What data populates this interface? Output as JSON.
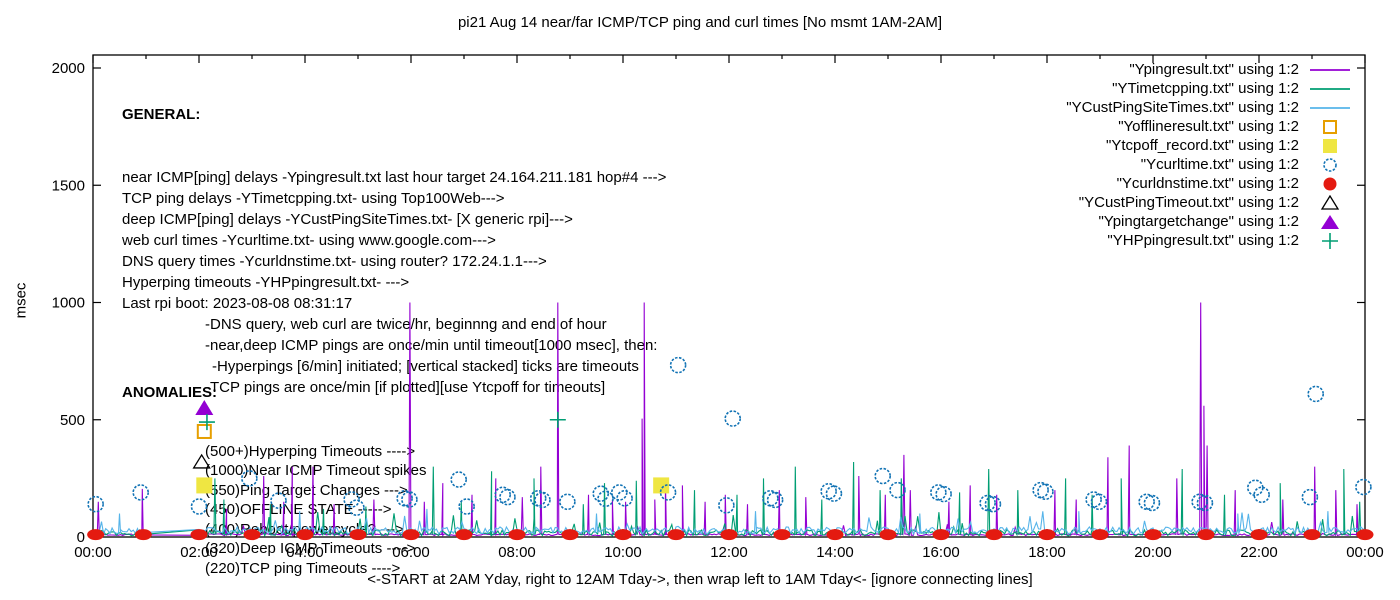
{
  "title": "pi21 Aug 14  near/far ICMP/TCP ping and curl times [No msmt 1AM-2AM]",
  "y_axis": {
    "label": "msec",
    "tick_values": [
      0,
      500,
      1000,
      1500,
      2000
    ]
  },
  "x_axis": {
    "tick_labels": [
      "00:00",
      "02:00",
      "04:00",
      "06:00",
      "08:00",
      "10:00",
      "12:00",
      "14:00",
      "16:00",
      "18:00",
      "20:00",
      "22:00",
      "00:00"
    ],
    "label": "<-START at 2AM Yday, right to 12AM Tday->, then wrap left to 1AM Tday<- [ignore connecting lines]"
  },
  "annotations": {
    "general": {
      "heading": "GENERAL:",
      "lines": [
        {
          "text": "near ICMP[ping] delays -Ypingresult.txt last hour target 24.164.211.181 hop#4 --->",
          "indent": 0
        },
        {
          "text": "TCP ping delays -YTimetcpping.txt- using Top100Web--->",
          "indent": 0
        },
        {
          "text": "deep ICMP[ping] delays -YCustPingSiteTimes.txt- [X generic rpi]--->",
          "indent": 0
        },
        {
          "text": "web curl times -Ycurltime.txt- using www.google.com--->",
          "indent": 0
        },
        {
          "text": "DNS query times -Ycurldnstime.txt- using router? 172.24.1.1--->",
          "indent": 0
        },
        {
          "text": "Hyperping timeouts -YHPpingresult.txt- --->",
          "indent": 0
        },
        {
          "text": "Last rpi boot: 2023-08-08 08:31:17",
          "indent": 0
        },
        {
          "text": "-DNS query, web curl are twice/hr, beginnng and end of hour",
          "indent": 1
        },
        {
          "text": "-near,deep ICMP pings are once/min until timeout[1000 msec], then:",
          "indent": 1
        },
        {
          "text": "-Hyperpings [6/min] initiated; [vertical stacked] ticks are timeouts",
          "indent": 2
        },
        {
          "text": "-TCP pings are once/min [if plotted][use Ytcpoff for timeouts]",
          "indent": 1
        }
      ]
    },
    "anomalies": {
      "heading": "ANOMALIES:",
      "lines": [
        "(500+)Hyperping Timeouts ---->",
        "(1000)Near ICMP Timeout spikes",
        "(550)Ping Target Changes --->",
        "(450)OFFLINE STATE ----->",
        "(400)Reboot/powercycle? --->",
        "(320)Deep ICMP Timeouts ---->",
        "(220)TCP ping Timeouts ---->"
      ]
    }
  },
  "chart_data": {
    "type": "line",
    "xlim": [
      0,
      24
    ],
    "ylim": [
      0,
      2000
    ],
    "x_unit": "hour of day",
    "y_unit": "msec",
    "no_measurement_gap_hours": [
      1,
      2
    ],
    "series": [
      {
        "name": "Ypingresult.txt",
        "legend_label": "\"Ypingresult.txt\" using 1:2",
        "kind": "line",
        "color": "#9400d3",
        "baseline": {
          "base": 6,
          "jitter": 8,
          "spike_prob": 0.03,
          "spike_max": 55,
          "seed": 7
        },
        "spikes": [
          [
            0.1,
            150
          ],
          [
            0.93,
            205
          ],
          [
            2.52,
            120
          ],
          [
            3.22,
            260
          ],
          [
            3.6,
            150
          ],
          [
            3.76,
            300
          ],
          [
            4.15,
            300
          ],
          [
            4.55,
            140
          ],
          [
            5.3,
            160
          ],
          [
            5.98,
            1000
          ],
          [
            6.25,
            150
          ],
          [
            6.6,
            230
          ],
          [
            7.15,
            180
          ],
          [
            7.6,
            250
          ],
          [
            8.1,
            170
          ],
          [
            8.45,
            300
          ],
          [
            8.77,
            1000
          ],
          [
            9.35,
            180
          ],
          [
            9.8,
            160
          ],
          [
            10.05,
            150
          ],
          [
            10.36,
            505
          ],
          [
            10.4,
            1000
          ],
          [
            10.6,
            160
          ],
          [
            10.8,
            250
          ],
          [
            11.12,
            220
          ],
          [
            11.55,
            150
          ],
          [
            11.93,
            180
          ],
          [
            12.35,
            140
          ],
          [
            12.95,
            200
          ],
          [
            13.45,
            170
          ],
          [
            14.45,
            260
          ],
          [
            14.95,
            180
          ],
          [
            15.3,
            350
          ],
          [
            15.42,
            200
          ],
          [
            16.15,
            150
          ],
          [
            16.55,
            220
          ],
          [
            17.05,
            180
          ],
          [
            18.15,
            200
          ],
          [
            18.55,
            160
          ],
          [
            19.15,
            340
          ],
          [
            19.55,
            390
          ],
          [
            20.45,
            250
          ],
          [
            20.9,
            1000
          ],
          [
            20.96,
            560
          ],
          [
            21.02,
            390
          ],
          [
            21.55,
            200
          ],
          [
            22.45,
            160
          ],
          [
            23.05,
            300
          ],
          [
            23.45,
            200
          ],
          [
            23.85,
            140
          ]
        ]
      },
      {
        "name": "YTimetcpping.txt",
        "legend_label": "\"YTimetcpping.txt\" using 1:2",
        "kind": "line",
        "color": "#009e73",
        "baseline": {
          "base": 5,
          "jitter": 26,
          "spike_prob": 0.06,
          "spike_max": 95,
          "seed": 13
        },
        "spikes": [
          [
            2.3,
            250
          ],
          [
            2.47,
            160
          ],
          [
            3.35,
            140
          ],
          [
            4.35,
            120
          ],
          [
            5.15,
            130
          ],
          [
            6.42,
            300
          ],
          [
            6.95,
            150
          ],
          [
            7.52,
            280
          ],
          [
            8.32,
            250
          ],
          [
            9.25,
            140
          ],
          [
            9.65,
            230
          ],
          [
            10.25,
            240
          ],
          [
            11.35,
            200
          ],
          [
            12.15,
            180
          ],
          [
            12.65,
            250
          ],
          [
            13.25,
            300
          ],
          [
            13.75,
            160
          ],
          [
            14.35,
            320
          ],
          [
            14.85,
            200
          ],
          [
            15.25,
            250
          ],
          [
            16.35,
            190
          ],
          [
            16.9,
            290
          ],
          [
            17.45,
            200
          ],
          [
            18.35,
            250
          ],
          [
            18.85,
            180
          ],
          [
            19.4,
            250
          ],
          [
            20.55,
            290
          ],
          [
            21.35,
            180
          ],
          [
            22.4,
            230
          ],
          [
            23.6,
            290
          ],
          [
            23.9,
            150
          ]
        ]
      },
      {
        "name": "YCustPingSiteTimes.txt",
        "legend_label": "\"YCustPingSiteTimes.txt\" using 1:2",
        "kind": "line",
        "color": "#56b4e9",
        "baseline": {
          "base": 13,
          "jitter": 30,
          "spike_prob": 0.05,
          "spike_max": 70,
          "seed": 29
        },
        "spikes": [
          [
            0.5,
            100
          ],
          [
            3.9,
            110
          ],
          [
            6.3,
            120
          ],
          [
            9.5,
            100
          ],
          [
            12.5,
            110
          ],
          [
            15.6,
            100
          ],
          [
            18.6,
            110
          ],
          [
            21.6,
            100
          ],
          [
            23.3,
            110
          ]
        ]
      },
      {
        "name": "Yofflineresult.txt",
        "legend_label": "\"Yofflineresult.txt\" using 1:2",
        "kind": "square-open",
        "color": "#e69f00",
        "points": [
          [
            2.1,
            450
          ]
        ]
      },
      {
        "name": "Ytcpoff_record.txt",
        "legend_label": "\"Ytcpoff_record.txt\" using 1:2",
        "kind": "square-filled",
        "color": "#efe642",
        "points": [
          [
            2.1,
            220
          ],
          [
            10.72,
            220
          ]
        ]
      },
      {
        "name": "Ycurltime.txt",
        "legend_label": "\"Ycurltime.txt\" using 1:2",
        "kind": "circle-open",
        "color": "#1072b4",
        "points": [
          [
            0.05,
            140
          ],
          [
            0.9,
            190
          ],
          [
            2.0,
            130
          ],
          [
            2.95,
            250
          ],
          [
            3.5,
            155
          ],
          [
            4.88,
            160
          ],
          [
            4.97,
            125
          ],
          [
            5.88,
            165
          ],
          [
            5.97,
            160
          ],
          [
            6.9,
            245
          ],
          [
            7.05,
            130
          ],
          [
            7.73,
            180
          ],
          [
            7.82,
            170
          ],
          [
            8.4,
            165
          ],
          [
            8.48,
            158
          ],
          [
            8.95,
            150
          ],
          [
            9.58,
            185
          ],
          [
            9.67,
            163
          ],
          [
            9.93,
            190
          ],
          [
            10.03,
            165
          ],
          [
            10.85,
            190
          ],
          [
            11.04,
            733
          ],
          [
            11.95,
            135
          ],
          [
            12.07,
            505
          ],
          [
            12.78,
            165
          ],
          [
            12.87,
            158
          ],
          [
            13.88,
            195
          ],
          [
            13.98,
            185
          ],
          [
            14.9,
            260
          ],
          [
            15.18,
            200
          ],
          [
            15.95,
            190
          ],
          [
            16.05,
            183
          ],
          [
            16.88,
            145
          ],
          [
            16.98,
            140
          ],
          [
            17.88,
            200
          ],
          [
            17.97,
            193
          ],
          [
            18.88,
            160
          ],
          [
            18.98,
            150
          ],
          [
            19.88,
            150
          ],
          [
            19.98,
            145
          ],
          [
            20.88,
            150
          ],
          [
            20.98,
            145
          ],
          [
            21.93,
            210
          ],
          [
            22.05,
            180
          ],
          [
            22.96,
            170
          ],
          [
            23.07,
            610
          ],
          [
            23.97,
            213
          ]
        ]
      },
      {
        "name": "Ycurldnstime.txt",
        "legend_label": "\"Ycurldnstime.txt\" using 1:2",
        "kind": "circle-filled",
        "color": "#e41a10",
        "points": [
          [
            0.05,
            10
          ],
          [
            0.95,
            10
          ],
          [
            2,
            10
          ],
          [
            3,
            10
          ],
          [
            4,
            10
          ],
          [
            5,
            10
          ],
          [
            6,
            10
          ],
          [
            7,
            10
          ],
          [
            8,
            10
          ],
          [
            9,
            10
          ],
          [
            10,
            10
          ],
          [
            11,
            10
          ],
          [
            12,
            10
          ],
          [
            13,
            10
          ],
          [
            14,
            10
          ],
          [
            15,
            10
          ],
          [
            16,
            10
          ],
          [
            17,
            10
          ],
          [
            18,
            10
          ],
          [
            19,
            10
          ],
          [
            20,
            10
          ],
          [
            21,
            10
          ],
          [
            22,
            10
          ],
          [
            23,
            10
          ],
          [
            24,
            10
          ]
        ]
      },
      {
        "name": "YCustPingTimeout.txt",
        "legend_label": "\"YCustPingTimeout.txt\" using 1:2",
        "kind": "triangle-open",
        "color": "#000000",
        "points": [
          [
            2.05,
            320
          ]
        ]
      },
      {
        "name": "Ypingtargetchange",
        "legend_label": "\"Ypingtargetchange\" using 1:2",
        "kind": "triangle-filled",
        "color": "#9400d3",
        "points": [
          [
            2.1,
            550
          ]
        ]
      },
      {
        "name": "YHPpingresult.txt",
        "legend_label": "\"YHPpingresult.txt\" using 1:2",
        "kind": "plus",
        "color": "#009e73",
        "points": [
          [
            2.15,
            490
          ],
          [
            8.77,
            500
          ]
        ]
      }
    ]
  }
}
